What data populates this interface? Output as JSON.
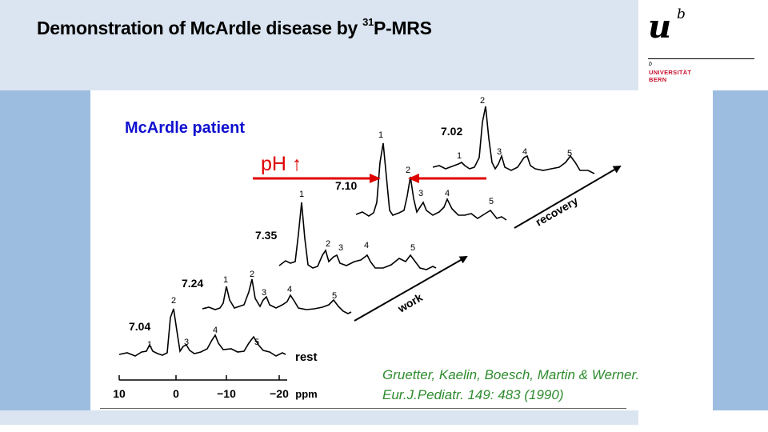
{
  "slide": {
    "title_pre": "Demonstration of McArdle disease by ",
    "title_sup": "31",
    "title_post": "P-MRS"
  },
  "logo": {
    "mark": "u",
    "mark_sup": "b",
    "small_b": "b",
    "line1": "UNIVERSITÄT",
    "line2": "BERN"
  },
  "figure": {
    "patient_label": "McArdle patient",
    "ph_label": "pH",
    "ph_arrow": "↑",
    "stage_labels": {
      "rest": "rest",
      "work": "work",
      "recovery": "recovery"
    },
    "axis": {
      "ticks": [
        "10",
        "0",
        "−10",
        "−20"
      ],
      "unit": "ppm"
    },
    "spectra": [
      {
        "ph": "7.04",
        "peaks": [
          "1",
          "2",
          "3",
          "4",
          "5"
        ]
      },
      {
        "ph": "7.24",
        "peaks": [
          "1",
          "2",
          "3",
          "4",
          "5"
        ]
      },
      {
        "ph": "7.35",
        "peaks": [
          "1",
          "2",
          "3",
          "4",
          "5"
        ]
      },
      {
        "ph": "7.10",
        "peaks": [
          "1",
          "2",
          "3",
          "4",
          "5"
        ]
      },
      {
        "ph": "7.02",
        "peaks": [
          "1",
          "2",
          "3",
          "4",
          "5"
        ]
      }
    ]
  },
  "citation": {
    "line1": "Gruetter, Kaelin, Boesch, Martin & Werner.",
    "line2": "Eur.J.Pediatr. 149: 483 (1990)"
  }
}
